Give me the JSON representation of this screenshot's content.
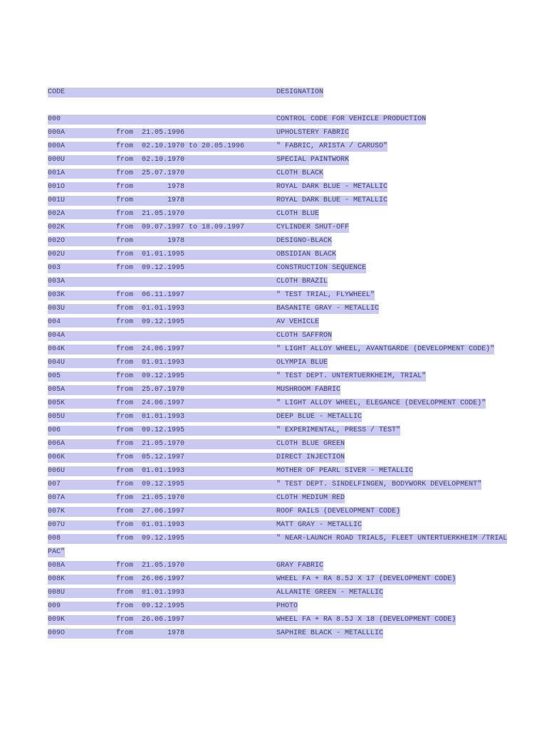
{
  "colors": {
    "highlight": "#c9c9f1",
    "text": "#3e3e6d",
    "page_background": "#ffffff"
  },
  "header": {
    "code_label": "CODE",
    "designation_label": "DESIGNATION"
  },
  "rows": [
    {
      "code": "000",
      "from": "",
      "date": "",
      "to": "",
      "todate": "",
      "designation": "CONTROL CODE FOR VEHICLE PRODUCTION"
    },
    {
      "code": "000A",
      "from": "from",
      "date": "21.05.1996",
      "to": "",
      "todate": "",
      "designation": "UPHOLSTERY FABRIC"
    },
    {
      "code": "000A",
      "from": "from",
      "date": "02.10.1970",
      "to": "to",
      "todate": "20.05.1996",
      "designation": "\" FABRIC, ARISTA / CARUSO\""
    },
    {
      "code": "000U",
      "from": "from",
      "date": "02.10.1970",
      "to": "",
      "todate": "",
      "designation": "SPECIAL PAINTWORK"
    },
    {
      "code": "001A",
      "from": "from",
      "date": "25.07.1970",
      "to": "",
      "todate": "",
      "designation": "CLOTH BLACK"
    },
    {
      "code": "001O",
      "from": "from",
      "date": "      1978",
      "to": "",
      "todate": "",
      "designation": "ROYAL DARK BLUE - METALLIC"
    },
    {
      "code": "001U",
      "from": "from",
      "date": "      1978",
      "to": "",
      "todate": "",
      "designation": "ROYAL DARK BLUE - METALLIC"
    },
    {
      "code": "002A",
      "from": "from",
      "date": "21.05.1970",
      "to": "",
      "todate": "",
      "designation": "CLOTH BLUE"
    },
    {
      "code": "002K",
      "from": "from",
      "date": "09.07.1997",
      "to": "to",
      "todate": "18.09.1997",
      "designation": "CYLINDER SHUT-OFF"
    },
    {
      "code": "002O",
      "from": "from",
      "date": "      1978",
      "to": "",
      "todate": "",
      "designation": "DESIGNO-BLACK"
    },
    {
      "code": "002U",
      "from": "from",
      "date": "01.01.1995",
      "to": "",
      "todate": "",
      "designation": "OBSIDIAN BLACK"
    },
    {
      "code": "003",
      "from": "from",
      "date": "09.12.1995",
      "to": "",
      "todate": "",
      "designation": "CONSTRUCTION SEQUENCE"
    },
    {
      "code": "003A",
      "from": "",
      "date": "",
      "to": "",
      "todate": "",
      "designation": "CLOTH BRAZIL"
    },
    {
      "code": "003K",
      "from": "from",
      "date": "06.11.1997",
      "to": "",
      "todate": "",
      "designation": "\" TEST TRIAL, FLYWHEEL\""
    },
    {
      "code": "003U",
      "from": "from",
      "date": "01.01.1993",
      "to": "",
      "todate": "",
      "designation": "BASANITE GRAY - METALLIC"
    },
    {
      "code": "004",
      "from": "from",
      "date": "09.12.1995",
      "to": "",
      "todate": "",
      "designation": "AV VEHICLE"
    },
    {
      "code": "004A",
      "from": "",
      "date": "",
      "to": "",
      "todate": "",
      "designation": "CLOTH SAFFRON"
    },
    {
      "code": "004K",
      "from": "from",
      "date": "24.06.1997",
      "to": "",
      "todate": "",
      "designation": "\" LIGHT ALLOY WHEEL, AVANTGARDE (DEVELOPMENT CODE)\""
    },
    {
      "code": "004U",
      "from": "from",
      "date": "01.01.1993",
      "to": "",
      "todate": "",
      "designation": "OLYMPIA BLUE"
    },
    {
      "code": "005",
      "from": "from",
      "date": "09.12.1995",
      "to": "",
      "todate": "",
      "designation": "\" TEST DEPT. UNTERTUERKHEIM, TRIAL\""
    },
    {
      "code": "005A",
      "from": "from",
      "date": "25.07.1970",
      "to": "",
      "todate": "",
      "designation": "MUSHROOM FABRIC"
    },
    {
      "code": "005K",
      "from": "from",
      "date": "24.06.1997",
      "to": "",
      "todate": "",
      "designation": "\" LIGHT ALLOY WHEEL, ELEGANCE (DEVELOPMENT CODE)\""
    },
    {
      "code": "005U",
      "from": "from",
      "date": "01.01.1993",
      "to": "",
      "todate": "",
      "designation": "DEEP BLUE - METALLIC"
    },
    {
      "code": "006",
      "from": "from",
      "date": "09.12.1995",
      "to": "",
      "todate": "",
      "designation": "\" EXPERIMENTAL, PRESS / TEST\""
    },
    {
      "code": "006A",
      "from": "from",
      "date": "21.05.1970",
      "to": "",
      "todate": "",
      "designation": "CLOTH BLUE GREEN"
    },
    {
      "code": "006K",
      "from": "from",
      "date": "05.12.1997",
      "to": "",
      "todate": "",
      "designation": "DIRECT INJECTION"
    },
    {
      "code": "006U",
      "from": "from",
      "date": "01.01.1993",
      "to": "",
      "todate": "",
      "designation": "MOTHER OF PEARL SIVER - METALLIC"
    },
    {
      "code": "007",
      "from": "from",
      "date": "09.12.1995",
      "to": "",
      "todate": "",
      "designation": "\" TEST DEPT. SINDELFINGEN, BODYWORK DEVELOPMENT\""
    },
    {
      "code": "007A",
      "from": "from",
      "date": "21.05.1970",
      "to": "",
      "todate": "",
      "designation": "CLOTH MEDIUM RED"
    },
    {
      "code": "007K",
      "from": "from",
      "date": "27.06.1997",
      "to": "",
      "todate": "",
      "designation": "ROOF RAILS (DEVELOPMENT CODE)"
    },
    {
      "code": "007U",
      "from": "from",
      "date": "01.01.1993",
      "to": "",
      "todate": "",
      "designation": "MATT GRAY - METALLIC"
    },
    {
      "code": "008",
      "from": "from",
      "date": "09.12.1995",
      "to": "",
      "todate": "",
      "designation": "\" NEAR-LAUNCH ROAD TRIALS, FLEET UNTERTUERKHEIM /TRIAL"
    },
    {
      "continuation": "PAC\""
    },
    {
      "code": "008A",
      "from": "from",
      "date": "21.05.1970",
      "to": "",
      "todate": "",
      "designation": "GRAY FABRIC"
    },
    {
      "code": "008K",
      "from": "from",
      "date": "26.06.1997",
      "to": "",
      "todate": "",
      "designation": "WHEEL FA + RA 8.5J X 17 (DEVELOPMENT CODE)"
    },
    {
      "code": "008U",
      "from": "from",
      "date": "01.01.1993",
      "to": "",
      "todate": "",
      "designation": "ALLANITE GREEN - METALLIC"
    },
    {
      "code": "009",
      "from": "from",
      "date": "09.12.1995",
      "to": "",
      "todate": "",
      "designation": "PHOTO"
    },
    {
      "code": "009K",
      "from": "from",
      "date": "26.06.1997",
      "to": "",
      "todate": "",
      "designation": "WHEEL FA + RA 8.5J X 18 (DEVELOPMENT CODE)"
    },
    {
      "code": "009O",
      "from": "from",
      "date": "      1978",
      "to": "",
      "todate": "",
      "designation": "SAPHIRE BLACK - METALLLIC"
    }
  ]
}
